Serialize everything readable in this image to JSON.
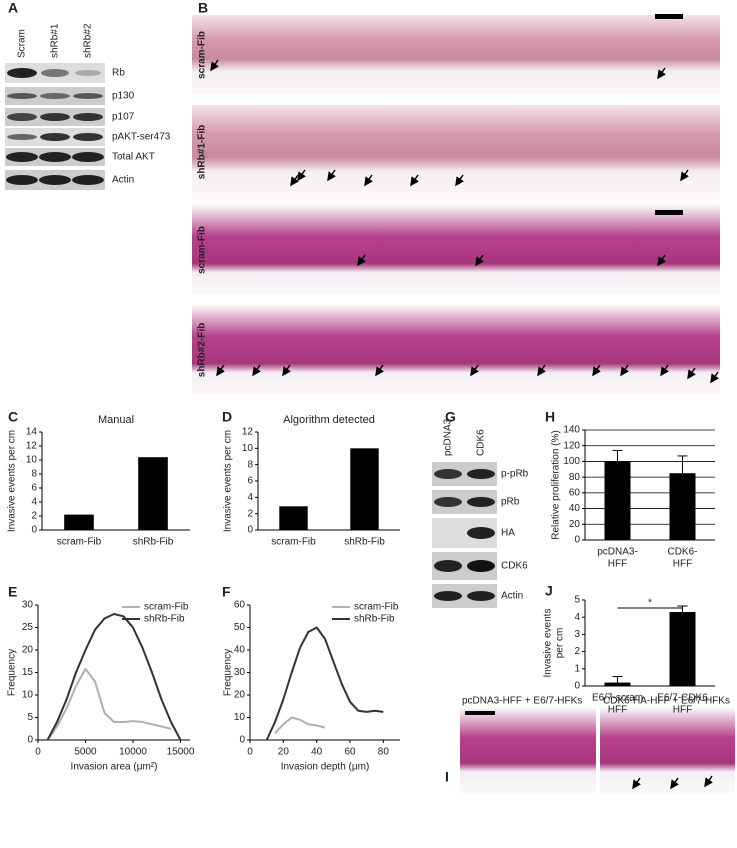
{
  "blot_A": {
    "panel": "A",
    "lanes": [
      "Scram",
      "shRb#1",
      "shRb#2"
    ],
    "proteins": [
      "Rb",
      "p130",
      "p107",
      "pAKT-ser473",
      "Total AKT",
      "Actin"
    ]
  },
  "histology_B": {
    "panel": "B",
    "labels": [
      "scram-Fib",
      "shRb#1-Fib",
      "scram-Fib",
      "shRb#2-Fib"
    ]
  },
  "blot_G": {
    "panel": "G",
    "lanes": [
      "pcDNA3",
      "CDK6"
    ],
    "proteins": [
      "p-pRb",
      "pRb",
      "HA",
      "CDK6",
      "Actin"
    ]
  },
  "panel_I": {
    "panel": "I",
    "captions": [
      "pcDNA3-HFF + E6/7-HFKs",
      "CDK6-HA-HFF + E6/7-HFKs"
    ]
  },
  "chart_data": [
    {
      "type": "bar",
      "panel": "C",
      "title": "Manual",
      "y_label": [
        "Invasive events per cm"
      ],
      "categories": [
        [
          "scram-Fib"
        ],
        [
          "shRb-Fib"
        ]
      ],
      "values": [
        2.2,
        10.4
      ],
      "color": "#000000",
      "ylim": [
        0,
        14
      ],
      "yticks": [
        0,
        2,
        4,
        6,
        8,
        10,
        12,
        14
      ],
      "grid": false
    },
    {
      "type": "bar",
      "panel": "D",
      "title": "Algorithm detected",
      "y_label": [
        "Invasive events per cm"
      ],
      "categories": [
        [
          "scram-Fib"
        ],
        [
          "shRb-Fib"
        ]
      ],
      "values": [
        2.9,
        10.0
      ],
      "color": "#000000",
      "ylim": [
        0,
        12
      ],
      "yticks": [
        0,
        2,
        4,
        6,
        8,
        10,
        12
      ],
      "grid": false
    },
    {
      "type": "line",
      "panel": "E",
      "y_label": [
        "Frequency"
      ],
      "x_label": "Invasion area (μm²)",
      "x": [
        1000,
        2000,
        3000,
        4000,
        5000,
        6000,
        7000,
        8000,
        9000,
        10000,
        11000,
        12000,
        13000,
        14000,
        15000
      ],
      "series": [
        {
          "name": "scram-Fib",
          "color": "#b0b0b0",
          "values": [
            0,
            3,
            7,
            12,
            15.8,
            13,
            6,
            4,
            4,
            4.2,
            4,
            3.5,
            3,
            2.5,
            null
          ]
        },
        {
          "name": "shRb-Fib",
          "color": "#333333",
          "values": [
            0,
            4,
            9,
            15,
            20,
            24.5,
            27,
            28,
            27.5,
            25,
            20.5,
            15,
            9,
            4,
            0
          ]
        }
      ],
      "xlim": [
        0,
        16000
      ],
      "xticks": [
        0,
        5000,
        10000,
        15000
      ],
      "ylim": [
        0,
        30
      ],
      "yticks": [
        0,
        5,
        10,
        15,
        20,
        25,
        30
      ],
      "legend": "upper right"
    },
    {
      "type": "line",
      "panel": "F",
      "y_label": [
        "Frequency"
      ],
      "x_label": "Invasion depth (μm)",
      "x": [
        10,
        15,
        20,
        25,
        30,
        35,
        40,
        45,
        50,
        55,
        60,
        65,
        70,
        75,
        80
      ],
      "series": [
        {
          "name": "scram-Fib",
          "color": "#b0b0b0",
          "values": [
            null,
            3,
            7,
            10,
            9,
            7,
            6.5,
            5.5,
            null,
            null,
            null,
            null,
            null,
            null,
            null
          ]
        },
        {
          "name": "shRb-Fib",
          "color": "#333333",
          "values": [
            0,
            8,
            18,
            30,
            41,
            48,
            50,
            45,
            35,
            25,
            17,
            13,
            12.5,
            13,
            12.5
          ]
        }
      ],
      "xlim": [
        0,
        90
      ],
      "xticks": [
        0,
        20,
        40,
        60,
        80
      ],
      "ylim": [
        0,
        60
      ],
      "yticks": [
        0,
        10,
        20,
        30,
        40,
        50,
        60
      ],
      "legend": "upper right"
    },
    {
      "type": "bar",
      "panel": "H",
      "y_label": [
        "Relative proliferation (%)"
      ],
      "categories": [
        [
          "pcDNA3-",
          "HFF"
        ],
        [
          "CDK6-",
          "HFF"
        ]
      ],
      "values": [
        100,
        85
      ],
      "errors": [
        14,
        22
      ],
      "color": "#000000",
      "ylim": [
        0,
        140
      ],
      "yticks": [
        0,
        20,
        40,
        60,
        80,
        100,
        120,
        140
      ],
      "grid": true
    },
    {
      "type": "bar",
      "panel": "J",
      "y_label": [
        "Invasive events",
        "per cm"
      ],
      "categories": [
        [
          "E6/7-scram",
          "HFF"
        ],
        [
          "E6/7-CDK6",
          "HFF"
        ]
      ],
      "values": [
        0.2,
        4.3
      ],
      "errors": [
        0.35,
        0.35
      ],
      "color": "#000000",
      "ylim": [
        0,
        5
      ],
      "yticks": [
        0,
        1,
        2,
        3,
        4,
        5
      ],
      "grid": false,
      "annotation": "*"
    }
  ]
}
